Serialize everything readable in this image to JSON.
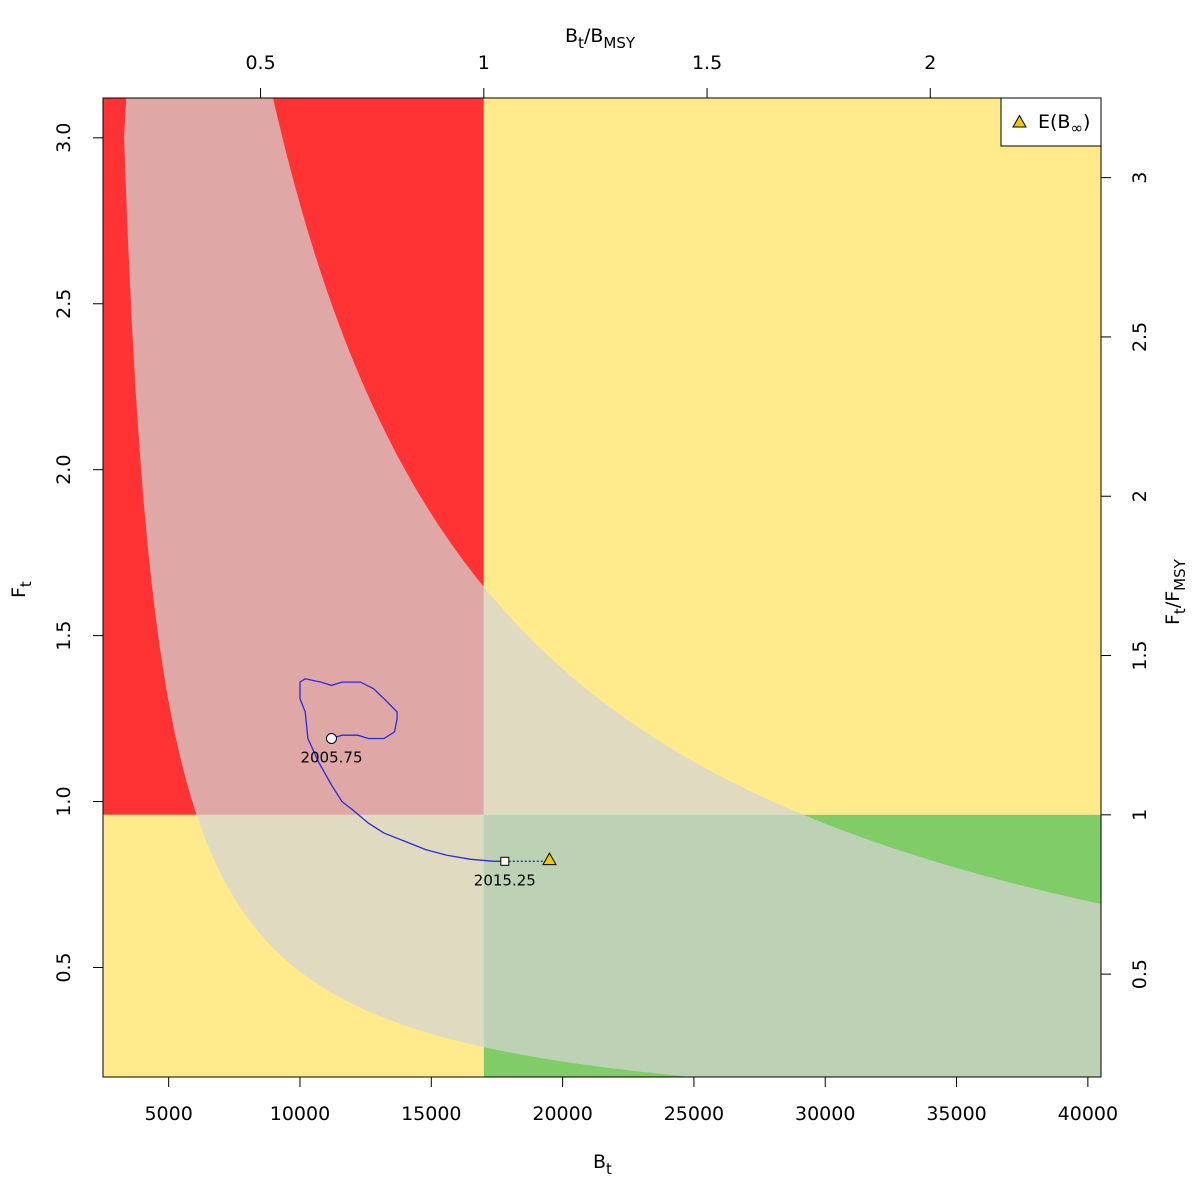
{
  "chart_data": {
    "type": "line",
    "x_axis": {
      "title_main": "B",
      "title_sub": "t",
      "range": [
        2500,
        40500
      ],
      "ticks": [
        5000,
        10000,
        15000,
        20000,
        25000,
        30000,
        35000,
        40000
      ]
    },
    "y_axis": {
      "title_main": "F",
      "title_sub": "t",
      "range": [
        0.17,
        3.12
      ],
      "ticks": [
        "0.5",
        "1.0",
        "1.5",
        "2.0",
        "2.5",
        "3.0"
      ]
    },
    "top_axis": {
      "title_main": "B",
      "title_sub": "t",
      "title_main2": "B",
      "title_sub2": "MSY",
      "ticks": [
        "0.5",
        "1",
        "1.5",
        "2"
      ],
      "bmsy": 17000
    },
    "right_axis": {
      "title_main": "F",
      "title_sub": "t",
      "title_main2": "F",
      "title_sub2": "MSY",
      "ticks": [
        "0.5",
        "1",
        "1.5",
        "2",
        "2.5",
        "3"
      ],
      "fmsy": 0.96
    },
    "zones": {
      "red": "#ff3333",
      "yellow": "#ffeb8c",
      "green": "#80cc66",
      "band": "#d4d4d4"
    },
    "band": {
      "upper_constant": 28000,
      "lower_constant": 3900,
      "lower_offset": 2000
    },
    "trajectory": {
      "color": "#2a2ae0",
      "points": [
        [
          11200,
          1.19
        ],
        [
          11600,
          1.2
        ],
        [
          12200,
          1.2
        ],
        [
          12600,
          1.19
        ],
        [
          13200,
          1.19
        ],
        [
          13600,
          1.21
        ],
        [
          13700,
          1.25
        ],
        [
          13700,
          1.27
        ],
        [
          13200,
          1.31
        ],
        [
          12800,
          1.34
        ],
        [
          12300,
          1.36
        ],
        [
          11600,
          1.36
        ],
        [
          11200,
          1.35
        ],
        [
          10800,
          1.36
        ],
        [
          10200,
          1.37
        ],
        [
          10000,
          1.36
        ],
        [
          10000,
          1.31
        ],
        [
          10200,
          1.27
        ],
        [
          10300,
          1.19
        ],
        [
          10700,
          1.12
        ],
        [
          11200,
          1.05
        ],
        [
          11600,
          1.0
        ],
        [
          12000,
          0.975
        ],
        [
          12600,
          0.935
        ],
        [
          13200,
          0.905
        ],
        [
          14000,
          0.88
        ],
        [
          14800,
          0.855
        ],
        [
          15600,
          0.838
        ],
        [
          16500,
          0.826
        ],
        [
          17400,
          0.82
        ],
        [
          17800,
          0.82
        ]
      ],
      "start": {
        "x": 11200,
        "y": 1.19,
        "label": "2005.75"
      },
      "end": {
        "x": 17800,
        "y": 0.82,
        "label": "2015.25"
      },
      "projection_to": [
        19600,
        0.82
      ]
    },
    "equilibrium": {
      "x": 19500,
      "y": 0.825,
      "color": "#f0c800"
    },
    "legend": {
      "position": "top-right",
      "main": "E(B",
      "sub": "∞",
      "close": ")"
    }
  }
}
